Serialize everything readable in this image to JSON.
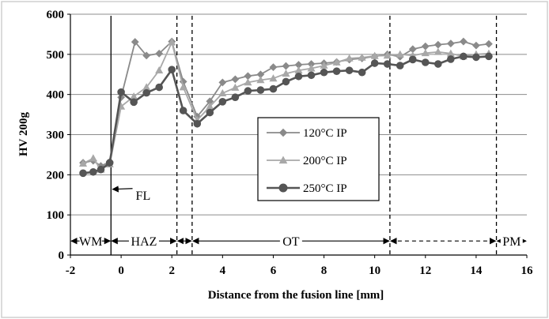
{
  "chart_data": {
    "type": "line",
    "title": "",
    "xlabel": "Distance from the fusion line [mm]",
    "ylabel": "HV 200g",
    "xlim": [
      -2,
      16
    ],
    "ylim": [
      0,
      600
    ],
    "x_ticks": [
      -2,
      0,
      2,
      4,
      6,
      8,
      10,
      12,
      14,
      16
    ],
    "y_ticks": [
      0,
      100,
      200,
      300,
      400,
      500,
      600
    ],
    "grid": "horizontal",
    "legend_position": "center-right",
    "series": [
      {
        "name": "120°C IP",
        "color": "#8a8a8a",
        "marker": "diamond",
        "points": [
          [
            -1.5,
            230
          ],
          [
            -1.1,
            235
          ],
          [
            -0.8,
            222
          ],
          [
            -0.45,
            232
          ],
          [
            0,
            393
          ],
          [
            0.55,
            531
          ],
          [
            1.0,
            497
          ],
          [
            1.5,
            502
          ],
          [
            2.0,
            532
          ],
          [
            2.45,
            432
          ],
          [
            3.0,
            345
          ],
          [
            3.5,
            383
          ],
          [
            4.0,
            430
          ],
          [
            4.5,
            438
          ],
          [
            5.0,
            446
          ],
          [
            5.5,
            450
          ],
          [
            6.0,
            468
          ],
          [
            6.5,
            471
          ],
          [
            7.0,
            474
          ],
          [
            7.5,
            476
          ],
          [
            8.0,
            478
          ],
          [
            8.5,
            481
          ],
          [
            9.0,
            487
          ],
          [
            9.5,
            490
          ],
          [
            10.0,
            495
          ],
          [
            10.5,
            500
          ],
          [
            11.0,
            494
          ],
          [
            11.5,
            513
          ],
          [
            12.0,
            520
          ],
          [
            12.5,
            524
          ],
          [
            13.0,
            527
          ],
          [
            13.5,
            532
          ],
          [
            14.0,
            522
          ],
          [
            14.5,
            526
          ]
        ]
      },
      {
        "name": "200°C IP",
        "color": "#a8a8a8",
        "marker": "triangle",
        "points": [
          [
            -1.5,
            228
          ],
          [
            -1.1,
            241
          ],
          [
            -0.8,
            213
          ],
          [
            -0.45,
            226
          ],
          [
            0,
            370
          ],
          [
            0.5,
            395
          ],
          [
            1.0,
            418
          ],
          [
            1.5,
            460
          ],
          [
            2.0,
            530
          ],
          [
            2.45,
            418
          ],
          [
            3.0,
            336
          ],
          [
            3.5,
            370
          ],
          [
            4.0,
            403
          ],
          [
            4.5,
            417
          ],
          [
            5.0,
            430
          ],
          [
            5.5,
            436
          ],
          [
            6.0,
            440
          ],
          [
            6.5,
            452
          ],
          [
            7.0,
            460
          ],
          [
            7.5,
            465
          ],
          [
            8.0,
            472
          ],
          [
            8.5,
            480
          ],
          [
            9.0,
            490
          ],
          [
            9.5,
            492
          ],
          [
            10.0,
            496
          ],
          [
            10.5,
            497
          ],
          [
            11.0,
            500
          ],
          [
            11.5,
            497
          ],
          [
            12.0,
            503
          ],
          [
            12.5,
            506
          ],
          [
            13.0,
            502
          ],
          [
            13.5,
            495
          ],
          [
            14.0,
            500
          ],
          [
            14.5,
            502
          ]
        ]
      },
      {
        "name": "250°C IP",
        "color": "#555555",
        "marker": "circle",
        "points": [
          [
            -1.5,
            204
          ],
          [
            -1.1,
            207
          ],
          [
            -0.8,
            213
          ],
          [
            -0.45,
            230
          ],
          [
            0,
            406
          ],
          [
            0.5,
            381
          ],
          [
            1.0,
            404
          ],
          [
            1.5,
            418
          ],
          [
            2.0,
            462
          ],
          [
            2.45,
            360
          ],
          [
            3.0,
            327
          ],
          [
            3.5,
            355
          ],
          [
            4.0,
            382
          ],
          [
            4.5,
            393
          ],
          [
            5.0,
            409
          ],
          [
            5.5,
            411
          ],
          [
            6.0,
            414
          ],
          [
            6.5,
            432
          ],
          [
            7.0,
            445
          ],
          [
            7.5,
            448
          ],
          [
            8.0,
            455
          ],
          [
            8.5,
            458
          ],
          [
            9.0,
            460
          ],
          [
            9.5,
            455
          ],
          [
            10.0,
            478
          ],
          [
            10.5,
            476
          ],
          [
            11.0,
            472
          ],
          [
            11.5,
            487
          ],
          [
            12.0,
            480
          ],
          [
            12.5,
            476
          ],
          [
            13.0,
            488
          ],
          [
            13.5,
            495
          ],
          [
            14.0,
            493
          ],
          [
            14.5,
            495
          ]
        ]
      }
    ],
    "vertical_lines": [
      {
        "x": -0.4,
        "style": "solid"
      },
      {
        "x": 2.2,
        "style": "dashed"
      },
      {
        "x": 2.8,
        "style": "dashed"
      },
      {
        "x": 10.6,
        "style": "dashed"
      },
      {
        "x": 14.8,
        "style": "dashed"
      }
    ],
    "regions": [
      {
        "label": "WM",
        "from": -2.0,
        "to": -0.4,
        "arrow_style": "solid"
      },
      {
        "label": "HAZ",
        "from": -0.4,
        "to": 2.2,
        "arrow_style": "solid"
      },
      {
        "label": "",
        "from": 2.2,
        "to": 2.8,
        "arrow_style": "solid"
      },
      {
        "label": "OT",
        "from": 2.8,
        "to": 10.6,
        "arrow_style": "solid"
      },
      {
        "label": "",
        "from": 10.6,
        "to": 14.8,
        "arrow_style": "dashed"
      },
      {
        "label": "PM",
        "from": 14.8,
        "to": 16.0,
        "arrow_style": "solid"
      }
    ],
    "annotations": [
      {
        "text": "FL",
        "arrow_to": [
          -0.4,
          160
        ],
        "label_at": [
          0.7,
          150
        ]
      }
    ]
  }
}
